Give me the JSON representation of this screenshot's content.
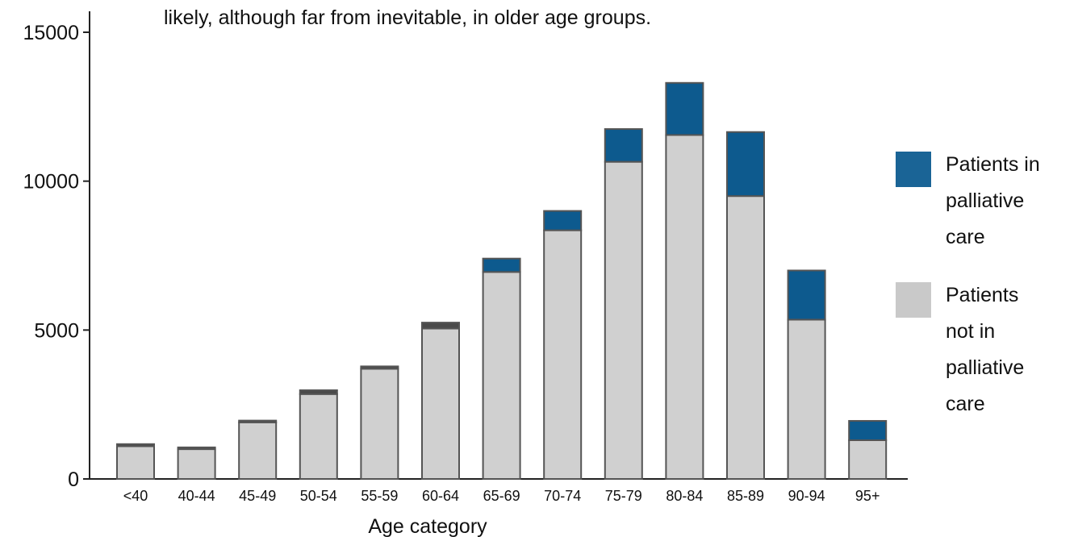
{
  "subtitle": "likely, although far from inevitable, in older age groups.",
  "chart_data": {
    "type": "bar",
    "stacked": true,
    "xlabel": "Age category",
    "ylabel": "",
    "ylim": [
      0,
      15000
    ],
    "yticks": [
      0,
      5000,
      10000,
      15000
    ],
    "grid": false,
    "legend_position": "right",
    "categories": [
      "<40",
      "40-44",
      "45-49",
      "50-54",
      "55-59",
      "60-64",
      "65-69",
      "70-74",
      "75-79",
      "80-84",
      "85-89",
      "90-94",
      "95+"
    ],
    "series": [
      {
        "name": "Patients not in palliative care",
        "color": "#d0d0d0",
        "values": [
          1100,
          1000,
          1900,
          2850,
          3700,
          5050,
          6950,
          8350,
          10650,
          11550,
          9500,
          5350,
          1300
        ]
      },
      {
        "name": "Patients in palliative care",
        "color": "#0d5a8e",
        "values": [
          70,
          60,
          60,
          130,
          80,
          200,
          450,
          650,
          1100,
          1750,
          2150,
          1650,
          650
        ]
      }
    ]
  },
  "legend": {
    "items": [
      {
        "lines": [
          "Patients in",
          "palliative",
          "care"
        ],
        "color": "#1a6496"
      },
      {
        "lines": [
          "Patients",
          "not in",
          "palliative",
          "care"
        ],
        "color": "#c9c9c9"
      }
    ]
  }
}
